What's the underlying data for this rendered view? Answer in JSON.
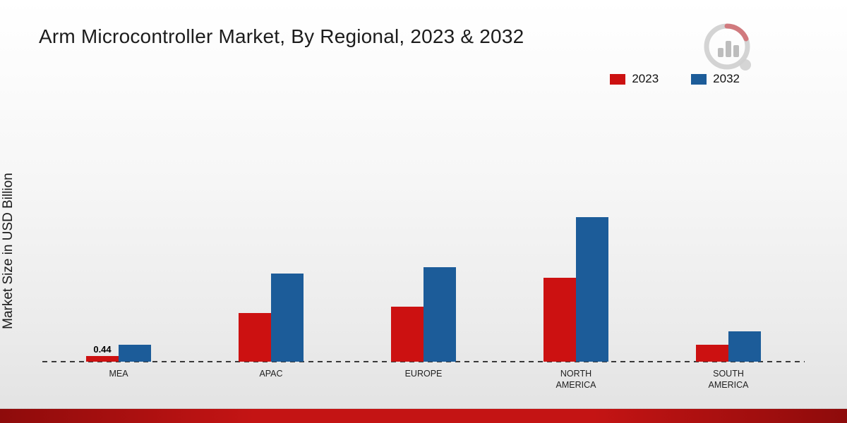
{
  "header": {
    "logo_name": "market-research-logo"
  },
  "chart_data": {
    "type": "bar",
    "title": "Arm Microcontroller Market, By Regional, 2023 & 2032",
    "xlabel": "",
    "ylabel": "Market Size in USD Billion",
    "ylim": [
      0,
      20
    ],
    "grid": false,
    "legend_position": "top-right",
    "categories": [
      "MEA",
      "APAC",
      "EUROPE",
      "NORTH AMERICA",
      "SOUTH AMERICA"
    ],
    "series": [
      {
        "name": "2023",
        "color": "#cc1111",
        "values": [
          0.44,
          3.7,
          4.2,
          6.4,
          1.3
        ]
      },
      {
        "name": "2032",
        "color": "#1c5c99",
        "values": [
          1.3,
          6.7,
          7.2,
          11.0,
          2.3
        ]
      }
    ],
    "annotations": [
      {
        "text": "0.44",
        "category_index": 0,
        "series_index": 0
      }
    ]
  },
  "colors": {
    "bar_2023": "#cc1111",
    "bar_2032": "#1c5c99",
    "bottom_strip": "#c41414",
    "baseline": "#3a3a3a"
  }
}
